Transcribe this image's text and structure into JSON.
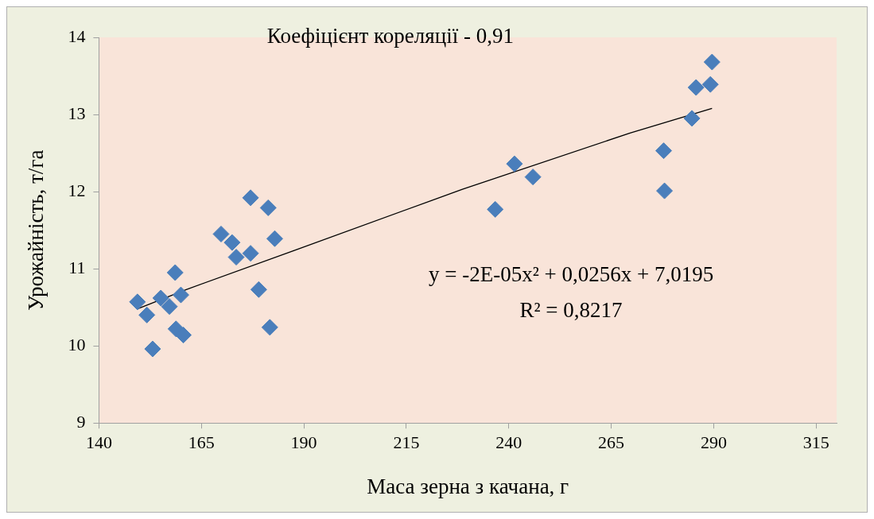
{
  "chart_data": {
    "type": "scatter",
    "xlabel": "Маса зерна з качана, г",
    "ylabel": "Урожайність, т/га",
    "annotations": [
      "Коефіцієнт кореляції - 0,91",
      "y = -2E-05x² + 0,0256x + 7,0195",
      "R² = 0,8217"
    ],
    "series": [
      {
        "type": "scatter",
        "color": "#4a7ebb",
        "marker": "diamond",
        "x": [
          149.4,
          151.7,
          153.1,
          155.1,
          157.2,
          158.6,
          158.8,
          160.0,
          160.6,
          169.8,
          172.5,
          173.5,
          177.0,
          177.0,
          181.3,
          182.9,
          179.0,
          181.7,
          236.7,
          241.4,
          245.9,
          277.8,
          278.0,
          284.7,
          285.7,
          289.2,
          289.6
        ],
        "values": [
          10.57,
          10.4,
          9.96,
          10.62,
          10.51,
          10.95,
          10.22,
          10.66,
          10.14,
          11.45,
          11.34,
          11.15,
          11.2,
          11.92,
          11.79,
          11.39,
          10.73,
          10.24,
          11.77,
          12.36,
          12.19,
          12.53,
          12.01,
          12.95,
          13.35,
          13.39,
          13.68
        ]
      },
      {
        "type": "line",
        "color": "#000000",
        "marker": "none",
        "x": [
          149.4,
          161.3,
          187.8,
          228.7,
          269.6,
          289.6
        ],
        "values": [
          10.48,
          10.73,
          11.24,
          12.03,
          12.76,
          13.08
        ]
      }
    ],
    "xlim": [
      140,
      320
    ],
    "xticks": [
      140,
      165,
      190,
      215,
      240,
      265,
      290,
      315
    ],
    "ylim": [
      9,
      14
    ],
    "yticks": [
      9,
      10,
      11,
      12,
      13,
      14
    ],
    "grid": false,
    "legend": false
  }
}
